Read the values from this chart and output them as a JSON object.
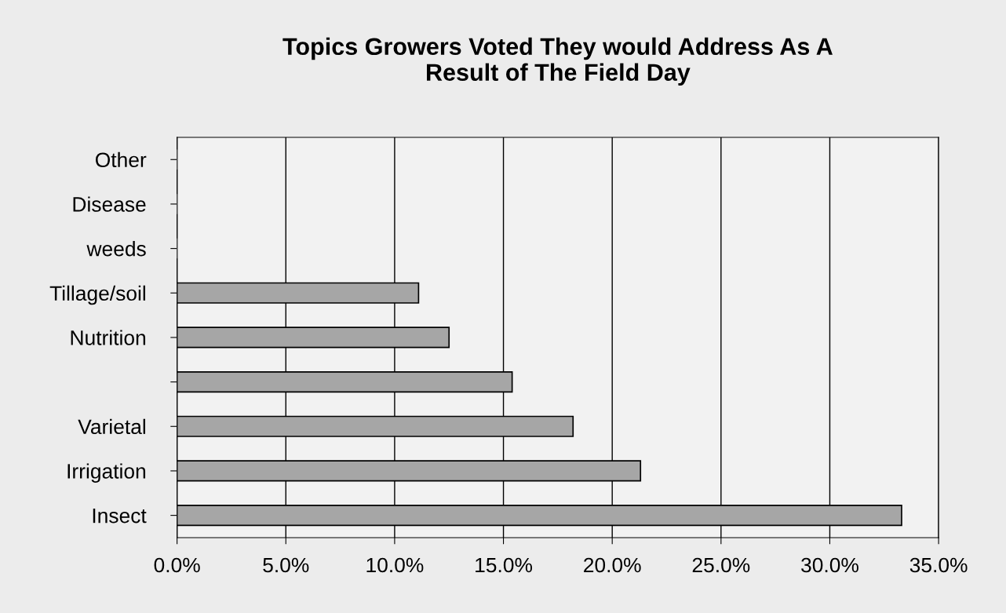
{
  "chart_data": {
    "type": "bar",
    "orientation": "horizontal",
    "title": "Topics Growers Voted They would Address As A\nResult of The Field Day",
    "categories": [
      "Other",
      "Disease",
      "weeds",
      "Tillage/soil",
      "Nutrition",
      null,
      "Varietal",
      "Irrigation",
      "Insect"
    ],
    "values": [
      0,
      0,
      0,
      11.1,
      12.5,
      15.4,
      18.2,
      21.3,
      33.3
    ],
    "color": "#a6a6a6",
    "xlim": [
      0,
      35
    ],
    "xticks": [
      {
        "value": 0,
        "label": "0.0%"
      },
      {
        "value": 5,
        "label": "5.0%"
      },
      {
        "value": 10,
        "label": "10.0%"
      },
      {
        "value": 15,
        "label": "15.0%"
      },
      {
        "value": 20,
        "label": "20.0%"
      },
      {
        "value": 25,
        "label": "25.0%"
      },
      {
        "value": 30,
        "label": "30.0%"
      },
      {
        "value": 35,
        "label": "35.0%"
      }
    ],
    "grid": "x"
  }
}
